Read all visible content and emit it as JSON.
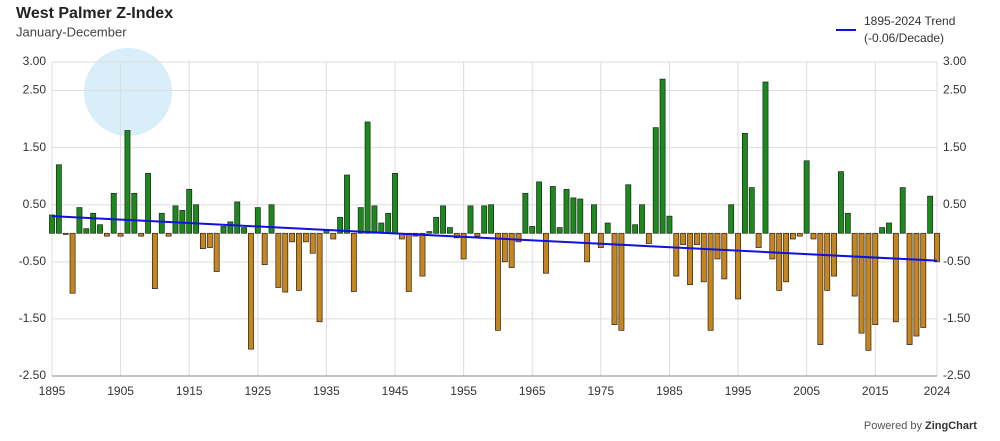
{
  "chart_data": {
    "type": "bar",
    "title": "West Palmer Z-Index",
    "subtitle": "January-December",
    "x": [
      1895,
      1896,
      1897,
      1898,
      1899,
      1900,
      1901,
      1902,
      1903,
      1904,
      1905,
      1906,
      1907,
      1908,
      1909,
      1910,
      1911,
      1912,
      1913,
      1914,
      1915,
      1916,
      1917,
      1918,
      1919,
      1920,
      1921,
      1922,
      1923,
      1924,
      1925,
      1926,
      1927,
      1928,
      1929,
      1930,
      1931,
      1932,
      1933,
      1934,
      1935,
      1936,
      1937,
      1938,
      1939,
      1940,
      1941,
      1942,
      1943,
      1944,
      1945,
      1946,
      1947,
      1948,
      1949,
      1950,
      1951,
      1952,
      1953,
      1954,
      1955,
      1956,
      1957,
      1958,
      1959,
      1960,
      1961,
      1962,
      1963,
      1964,
      1965,
      1966,
      1967,
      1968,
      1969,
      1970,
      1971,
      1972,
      1973,
      1974,
      1975,
      1976,
      1977,
      1978,
      1979,
      1980,
      1981,
      1982,
      1983,
      1984,
      1985,
      1986,
      1987,
      1988,
      1989,
      1990,
      1991,
      1992,
      1993,
      1994,
      1995,
      1996,
      1997,
      1998,
      1999,
      2000,
      2001,
      2002,
      2003,
      2004,
      2005,
      2006,
      2007,
      2008,
      2009,
      2010,
      2011,
      2012,
      2013,
      2014,
      2015,
      2016,
      2017,
      2018,
      2019,
      2020,
      2021,
      2022,
      2023,
      2024
    ],
    "values": [
      0.32,
      1.2,
      -0.02,
      -1.05,
      0.45,
      0.08,
      0.35,
      0.15,
      -0.05,
      0.7,
      -0.05,
      1.8,
      0.7,
      -0.05,
      1.05,
      -0.97,
      0.35,
      -0.05,
      0.48,
      0.4,
      0.77,
      0.5,
      -0.27,
      -0.25,
      -0.67,
      0.12,
      0.2,
      0.55,
      0.1,
      -2.03,
      0.45,
      -0.55,
      0.5,
      -0.95,
      -1.03,
      -0.15,
      -1.0,
      -0.15,
      -0.35,
      -1.55,
      0.05,
      -0.1,
      0.28,
      1.02,
      -1.02,
      0.45,
      1.95,
      0.48,
      0.18,
      0.35,
      1.05,
      -0.1,
      -1.02,
      -0.05,
      -0.75,
      0.03,
      0.28,
      0.48,
      0.1,
      -0.08,
      -0.45,
      0.48,
      -0.05,
      0.48,
      0.5,
      -1.7,
      -0.5,
      -0.6,
      -0.15,
      0.7,
      0.12,
      0.9,
      -0.7,
      0.82,
      0.1,
      0.77,
      0.62,
      0.6,
      -0.5,
      0.5,
      -0.25,
      0.18,
      -1.6,
      -1.7,
      0.85,
      0.15,
      0.5,
      -0.18,
      1.85,
      2.7,
      0.3,
      -0.75,
      -0.2,
      -0.9,
      -0.2,
      -0.85,
      -1.7,
      -0.45,
      -0.8,
      0.5,
      -1.15,
      1.75,
      0.8,
      -0.25,
      2.65,
      -0.45,
      -1.0,
      -0.85,
      -0.1,
      -0.05,
      1.27,
      -0.1,
      -1.95,
      -1.0,
      -0.75,
      1.08,
      0.35,
      -1.1,
      -1.75,
      -2.05,
      -1.6,
      0.1,
      0.18,
      -1.55,
      0.8,
      -1.95,
      -1.8,
      -1.65,
      0.65,
      -0.5
    ],
    "positive_color": "#1a8a1a",
    "negative_color": "#c8851c",
    "trend": {
      "name": "1895-2024 Trend",
      "detail": "(-0.06/Decade)",
      "color": "#1010e0",
      "x": [
        1895,
        2024
      ],
      "values": [
        0.3,
        -0.48
      ]
    },
    "xlim": [
      1895,
      2024
    ],
    "xticks": [
      1895,
      1905,
      1915,
      1925,
      1935,
      1945,
      1955,
      1965,
      1975,
      1985,
      1995,
      2005,
      2015,
      2024
    ],
    "ylim": [
      -2.5,
      3
    ],
    "yticks": [
      {
        "value": 3,
        "label": "3.00"
      },
      {
        "value": 2.5,
        "label": "2.50"
      },
      {
        "value": 1.5,
        "label": "1.50"
      },
      {
        "value": 0.5,
        "label": "0.50"
      },
      {
        "value": -0.5,
        "label": "-0.50"
      },
      {
        "value": -1.5,
        "label": "-1.50"
      },
      {
        "value": -2.5,
        "label": "-2.50"
      }
    ],
    "grid": true,
    "credit": "Powered by",
    "credit_brand": "ZingChart"
  }
}
